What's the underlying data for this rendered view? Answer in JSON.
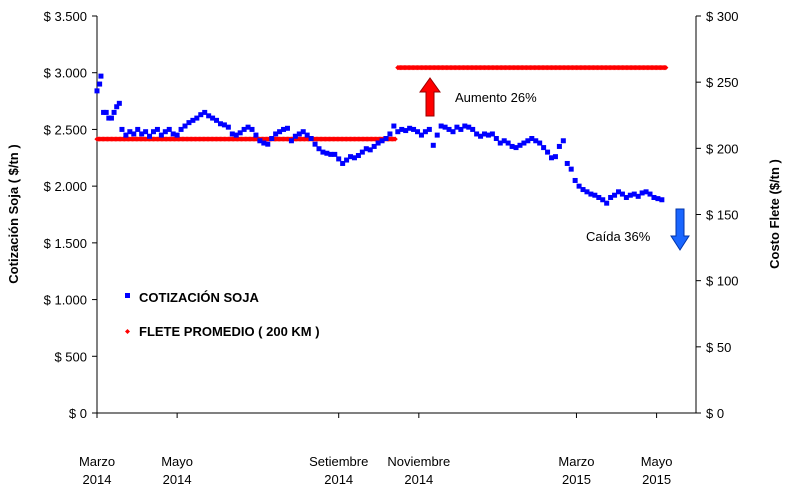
{
  "chart_data": {
    "type": "scatter",
    "y_left": {
      "label": "Cotización Soja ( $/tn )",
      "range": [
        0,
        3500
      ],
      "ticks": [
        "$ 0",
        "$ 500",
        "$ 1.000",
        "$ 1.500",
        "$ 2.000",
        "$ 2.500",
        "$ 3.000",
        "$ 3.500"
      ],
      "tick_values": [
        0,
        500,
        1000,
        1500,
        2000,
        2500,
        3000,
        3500
      ]
    },
    "y_right": {
      "label": "Costo Flete ($/tn )",
      "range": [
        0,
        300
      ],
      "ticks": [
        "$ 0",
        "$ 50",
        "$ 100",
        "$ 150",
        "$ 200",
        "$ 250",
        "$ 300"
      ],
      "tick_values": [
        0,
        50,
        100,
        150,
        200,
        250,
        300
      ]
    },
    "x_axis": {
      "range": [
        "2014-03-01",
        "2015-05-31"
      ],
      "ticks": [
        {
          "date": "2014-03-01",
          "line1": "Marzo",
          "line2": "2014"
        },
        {
          "date": "2014-05-01",
          "line1": "Mayo",
          "line2": "2014"
        },
        {
          "date": "2014-09-01",
          "line1": "Setiembre",
          "line2": "2014"
        },
        {
          "date": "2014-11-01",
          "line1": "Noviembre",
          "line2": "2014"
        },
        {
          "date": "2015-03-01",
          "line1": "Marzo",
          "line2": "2015"
        },
        {
          "date": "2015-05-01",
          "line1": "Mayo",
          "line2": "2015"
        }
      ]
    },
    "grid": false,
    "legend_position": "left",
    "series": [
      {
        "name": "COTIZACIÓN SOJA",
        "axis": "left",
        "color": "#0000ff",
        "marker": "square",
        "points": [
          [
            "2014-03-01",
            2840
          ],
          [
            "2014-03-03",
            2900
          ],
          [
            "2014-03-04",
            2970
          ],
          [
            "2014-03-06",
            2650
          ],
          [
            "2014-03-08",
            2650
          ],
          [
            "2014-03-10",
            2600
          ],
          [
            "2014-03-12",
            2600
          ],
          [
            "2014-03-14",
            2650
          ],
          [
            "2014-03-16",
            2700
          ],
          [
            "2014-03-18",
            2730
          ],
          [
            "2014-03-20",
            2500
          ],
          [
            "2014-03-23",
            2450
          ],
          [
            "2014-03-26",
            2480
          ],
          [
            "2014-03-29",
            2460
          ],
          [
            "2014-04-01",
            2500
          ],
          [
            "2014-04-04",
            2460
          ],
          [
            "2014-04-07",
            2480
          ],
          [
            "2014-04-10",
            2440
          ],
          [
            "2014-04-13",
            2480
          ],
          [
            "2014-04-16",
            2500
          ],
          [
            "2014-04-19",
            2450
          ],
          [
            "2014-04-22",
            2480
          ],
          [
            "2014-04-25",
            2500
          ],
          [
            "2014-04-28",
            2460
          ],
          [
            "2014-05-01",
            2450
          ],
          [
            "2014-05-04",
            2500
          ],
          [
            "2014-05-07",
            2530
          ],
          [
            "2014-05-10",
            2560
          ],
          [
            "2014-05-13",
            2580
          ],
          [
            "2014-05-16",
            2600
          ],
          [
            "2014-05-19",
            2630
          ],
          [
            "2014-05-22",
            2650
          ],
          [
            "2014-05-25",
            2620
          ],
          [
            "2014-05-28",
            2600
          ],
          [
            "2014-05-31",
            2580
          ],
          [
            "2014-06-03",
            2550
          ],
          [
            "2014-06-06",
            2540
          ],
          [
            "2014-06-09",
            2520
          ],
          [
            "2014-06-12",
            2460
          ],
          [
            "2014-06-15",
            2450
          ],
          [
            "2014-06-18",
            2470
          ],
          [
            "2014-06-21",
            2500
          ],
          [
            "2014-06-24",
            2520
          ],
          [
            "2014-06-27",
            2500
          ],
          [
            "2014-06-30",
            2450
          ],
          [
            "2014-07-03",
            2400
          ],
          [
            "2014-07-06",
            2380
          ],
          [
            "2014-07-09",
            2370
          ],
          [
            "2014-07-12",
            2420
          ],
          [
            "2014-07-15",
            2460
          ],
          [
            "2014-07-18",
            2480
          ],
          [
            "2014-07-21",
            2500
          ],
          [
            "2014-07-24",
            2510
          ],
          [
            "2014-07-27",
            2400
          ],
          [
            "2014-07-30",
            2440
          ],
          [
            "2014-08-02",
            2460
          ],
          [
            "2014-08-05",
            2480
          ],
          [
            "2014-08-08",
            2450
          ],
          [
            "2014-08-11",
            2420
          ],
          [
            "2014-08-14",
            2370
          ],
          [
            "2014-08-17",
            2330
          ],
          [
            "2014-08-20",
            2300
          ],
          [
            "2014-08-23",
            2290
          ],
          [
            "2014-08-26",
            2280
          ],
          [
            "2014-08-29",
            2280
          ],
          [
            "2014-09-01",
            2240
          ],
          [
            "2014-09-04",
            2200
          ],
          [
            "2014-09-07",
            2230
          ],
          [
            "2014-09-10",
            2260
          ],
          [
            "2014-09-13",
            2250
          ],
          [
            "2014-09-16",
            2270
          ],
          [
            "2014-09-19",
            2300
          ],
          [
            "2014-09-22",
            2330
          ],
          [
            "2014-09-25",
            2320
          ],
          [
            "2014-09-28",
            2350
          ],
          [
            "2014-10-01",
            2380
          ],
          [
            "2014-10-04",
            2400
          ],
          [
            "2014-10-07",
            2420
          ],
          [
            "2014-10-10",
            2460
          ],
          [
            "2014-10-13",
            2530
          ],
          [
            "2014-10-16",
            2480
          ],
          [
            "2014-10-19",
            2500
          ],
          [
            "2014-10-22",
            2490
          ],
          [
            "2014-10-25",
            2510
          ],
          [
            "2014-10-28",
            2500
          ],
          [
            "2014-10-31",
            2480
          ],
          [
            "2014-11-03",
            2450
          ],
          [
            "2014-11-06",
            2480
          ],
          [
            "2014-11-09",
            2500
          ],
          [
            "2014-11-12",
            2360
          ],
          [
            "2014-11-15",
            2450
          ],
          [
            "2014-11-18",
            2530
          ],
          [
            "2014-11-21",
            2520
          ],
          [
            "2014-11-24",
            2500
          ],
          [
            "2014-11-27",
            2480
          ],
          [
            "2014-11-30",
            2520
          ],
          [
            "2014-12-03",
            2500
          ],
          [
            "2014-12-06",
            2530
          ],
          [
            "2014-12-09",
            2520
          ],
          [
            "2014-12-12",
            2500
          ],
          [
            "2014-12-15",
            2460
          ],
          [
            "2014-12-18",
            2440
          ],
          [
            "2014-12-21",
            2460
          ],
          [
            "2014-12-24",
            2450
          ],
          [
            "2014-12-27",
            2460
          ],
          [
            "2014-12-30",
            2420
          ],
          [
            "2015-01-02",
            2380
          ],
          [
            "2015-01-05",
            2400
          ],
          [
            "2015-01-08",
            2380
          ],
          [
            "2015-01-11",
            2350
          ],
          [
            "2015-01-14",
            2340
          ],
          [
            "2015-01-17",
            2360
          ],
          [
            "2015-01-20",
            2380
          ],
          [
            "2015-01-23",
            2400
          ],
          [
            "2015-01-26",
            2420
          ],
          [
            "2015-01-29",
            2400
          ],
          [
            "2015-02-01",
            2380
          ],
          [
            "2015-02-04",
            2340
          ],
          [
            "2015-02-07",
            2300
          ],
          [
            "2015-02-10",
            2250
          ],
          [
            "2015-02-13",
            2260
          ],
          [
            "2015-02-16",
            2350
          ],
          [
            "2015-02-19",
            2400
          ],
          [
            "2015-02-22",
            2200
          ],
          [
            "2015-02-25",
            2150
          ],
          [
            "2015-02-28",
            2050
          ],
          [
            "2015-03-03",
            2000
          ],
          [
            "2015-03-06",
            1970
          ],
          [
            "2015-03-09",
            1950
          ],
          [
            "2015-03-12",
            1930
          ],
          [
            "2015-03-15",
            1920
          ],
          [
            "2015-03-18",
            1900
          ],
          [
            "2015-03-21",
            1880
          ],
          [
            "2015-03-24",
            1850
          ],
          [
            "2015-03-27",
            1900
          ],
          [
            "2015-03-30",
            1920
          ],
          [
            "2015-04-02",
            1950
          ],
          [
            "2015-04-05",
            1930
          ],
          [
            "2015-04-08",
            1900
          ],
          [
            "2015-04-11",
            1920
          ],
          [
            "2015-04-14",
            1930
          ],
          [
            "2015-04-17",
            1910
          ],
          [
            "2015-04-20",
            1940
          ],
          [
            "2015-04-23",
            1950
          ],
          [
            "2015-04-26",
            1930
          ],
          [
            "2015-04-29",
            1900
          ],
          [
            "2015-05-02",
            1890
          ],
          [
            "2015-05-05",
            1880
          ]
        ]
      },
      {
        "name": "FLETE PROMEDIO ( 200 KM )",
        "axis": "right",
        "color": "#ff0000",
        "marker": "diamond",
        "segments": [
          {
            "from": "2014-03-01",
            "to": "2014-10-14",
            "value": 207
          },
          {
            "from": "2014-10-16",
            "to": "2015-05-08",
            "value": 261
          }
        ]
      }
    ],
    "annotations": [
      {
        "text": "Aumento 26%",
        "arrow": "up",
        "color": "#ff0000"
      },
      {
        "text": "Caída 36%",
        "arrow": "down",
        "color": "#0066ff"
      }
    ]
  }
}
